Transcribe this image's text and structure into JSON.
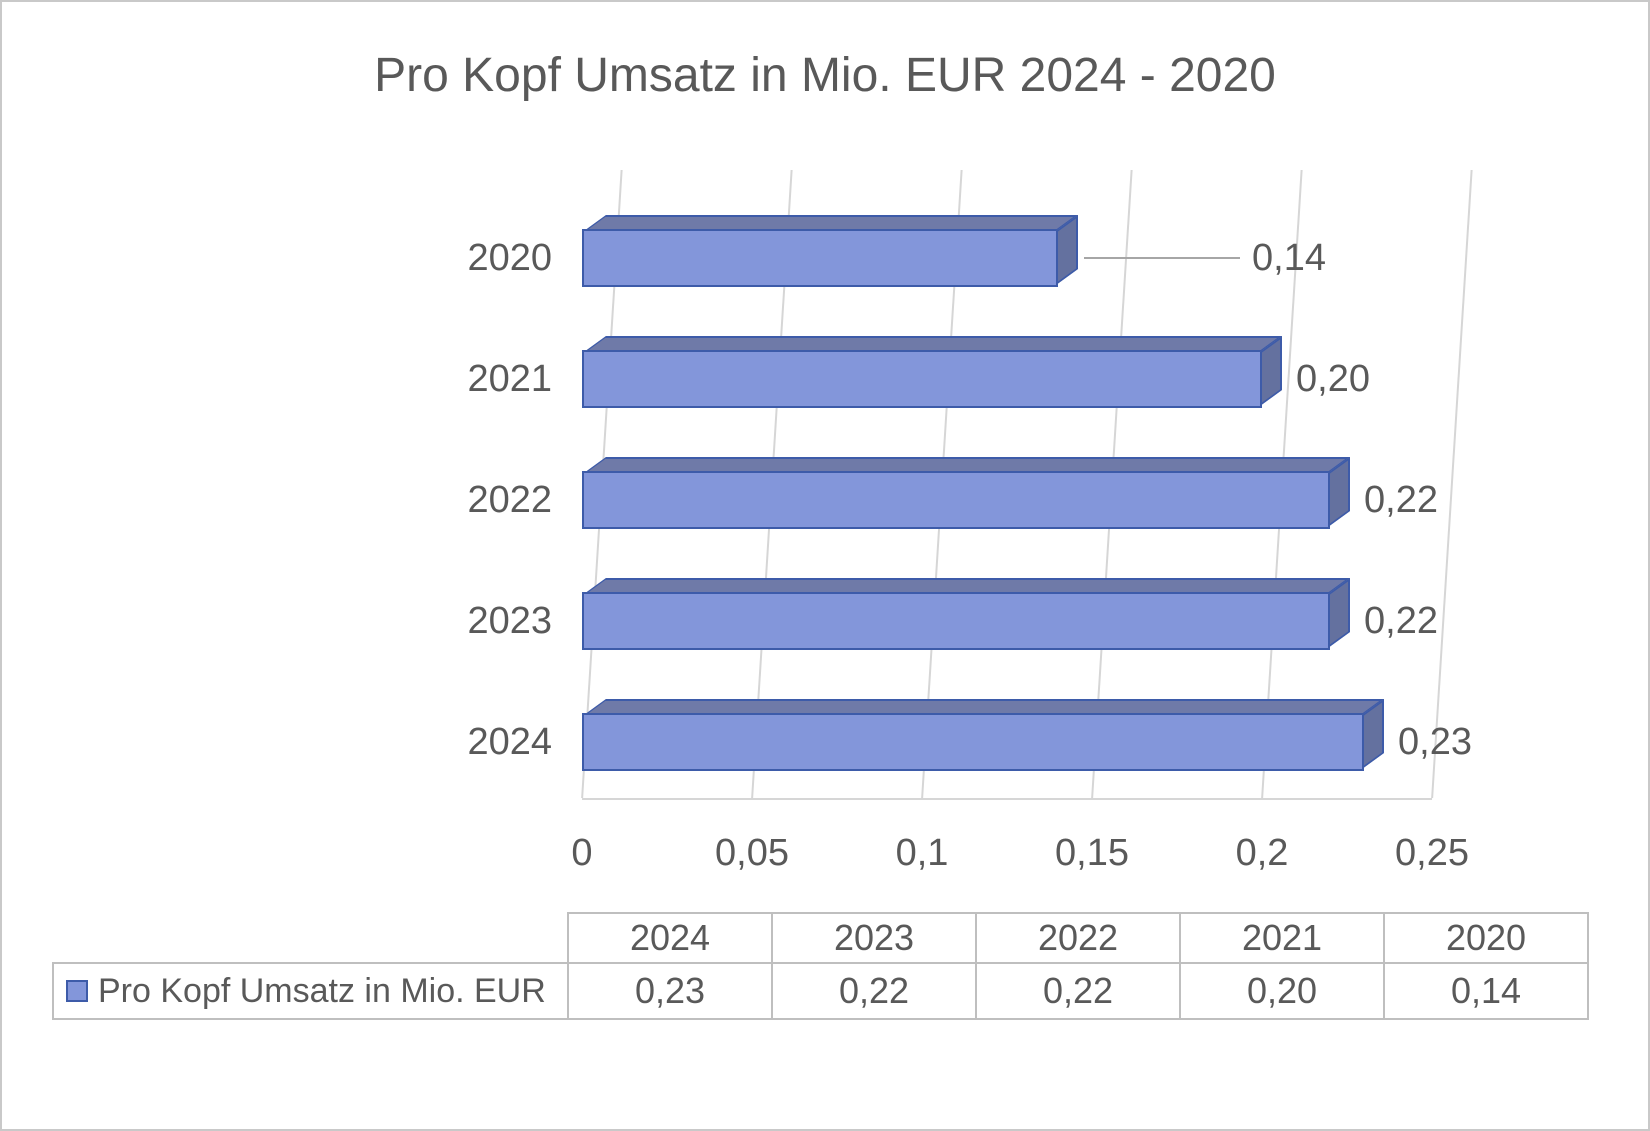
{
  "title": "Pro Kopf Umsatz in Mio. EUR 2024 - 2020",
  "chart_data": {
    "type": "bar",
    "orientation": "horizontal",
    "style": "3d",
    "title": "Pro Kopf Umsatz in Mio. EUR 2024 - 2020",
    "series": [
      {
        "name": "Pro Kopf Umsatz in Mio. EUR",
        "points": [
          {
            "category": "2020",
            "value": 0.14,
            "label": "0,14",
            "leader_line": true
          },
          {
            "category": "2021",
            "value": 0.2,
            "label": "0,20",
            "leader_line": false
          },
          {
            "category": "2022",
            "value": 0.22,
            "label": "0,22",
            "leader_line": false
          },
          {
            "category": "2023",
            "value": 0.22,
            "label": "0,22",
            "leader_line": false
          },
          {
            "category": "2024",
            "value": 0.23,
            "label": "0,23",
            "leader_line": false
          }
        ]
      }
    ],
    "xlim": [
      0,
      0.25
    ],
    "x_ticks": [
      {
        "label": "0",
        "value": 0
      },
      {
        "label": "0,05",
        "value": 0.05
      },
      {
        "label": "0,1",
        "value": 0.1
      },
      {
        "label": "0,15",
        "value": 0.15
      },
      {
        "label": "0,2",
        "value": 0.2
      },
      {
        "label": "0,25",
        "value": 0.25
      }
    ],
    "grid": true,
    "legend_position": "table-bottom",
    "colors": {
      "bar_fill": "#8396da",
      "bar_border": "#3d5ba9",
      "bar_top": "#6f7aa8",
      "bar_side": "#64719f",
      "gridline": "#d6d6d6",
      "text": "#595959",
      "leader_line": "#a6a6a6"
    }
  },
  "table": {
    "columns": [
      "2024",
      "2023",
      "2022",
      "2021",
      "2020"
    ],
    "rows": [
      {
        "label": "Pro Kopf Umsatz in Mio. EUR",
        "values": [
          "0,23",
          "0,22",
          "0,22",
          "0,20",
          "0,14"
        ]
      }
    ]
  }
}
